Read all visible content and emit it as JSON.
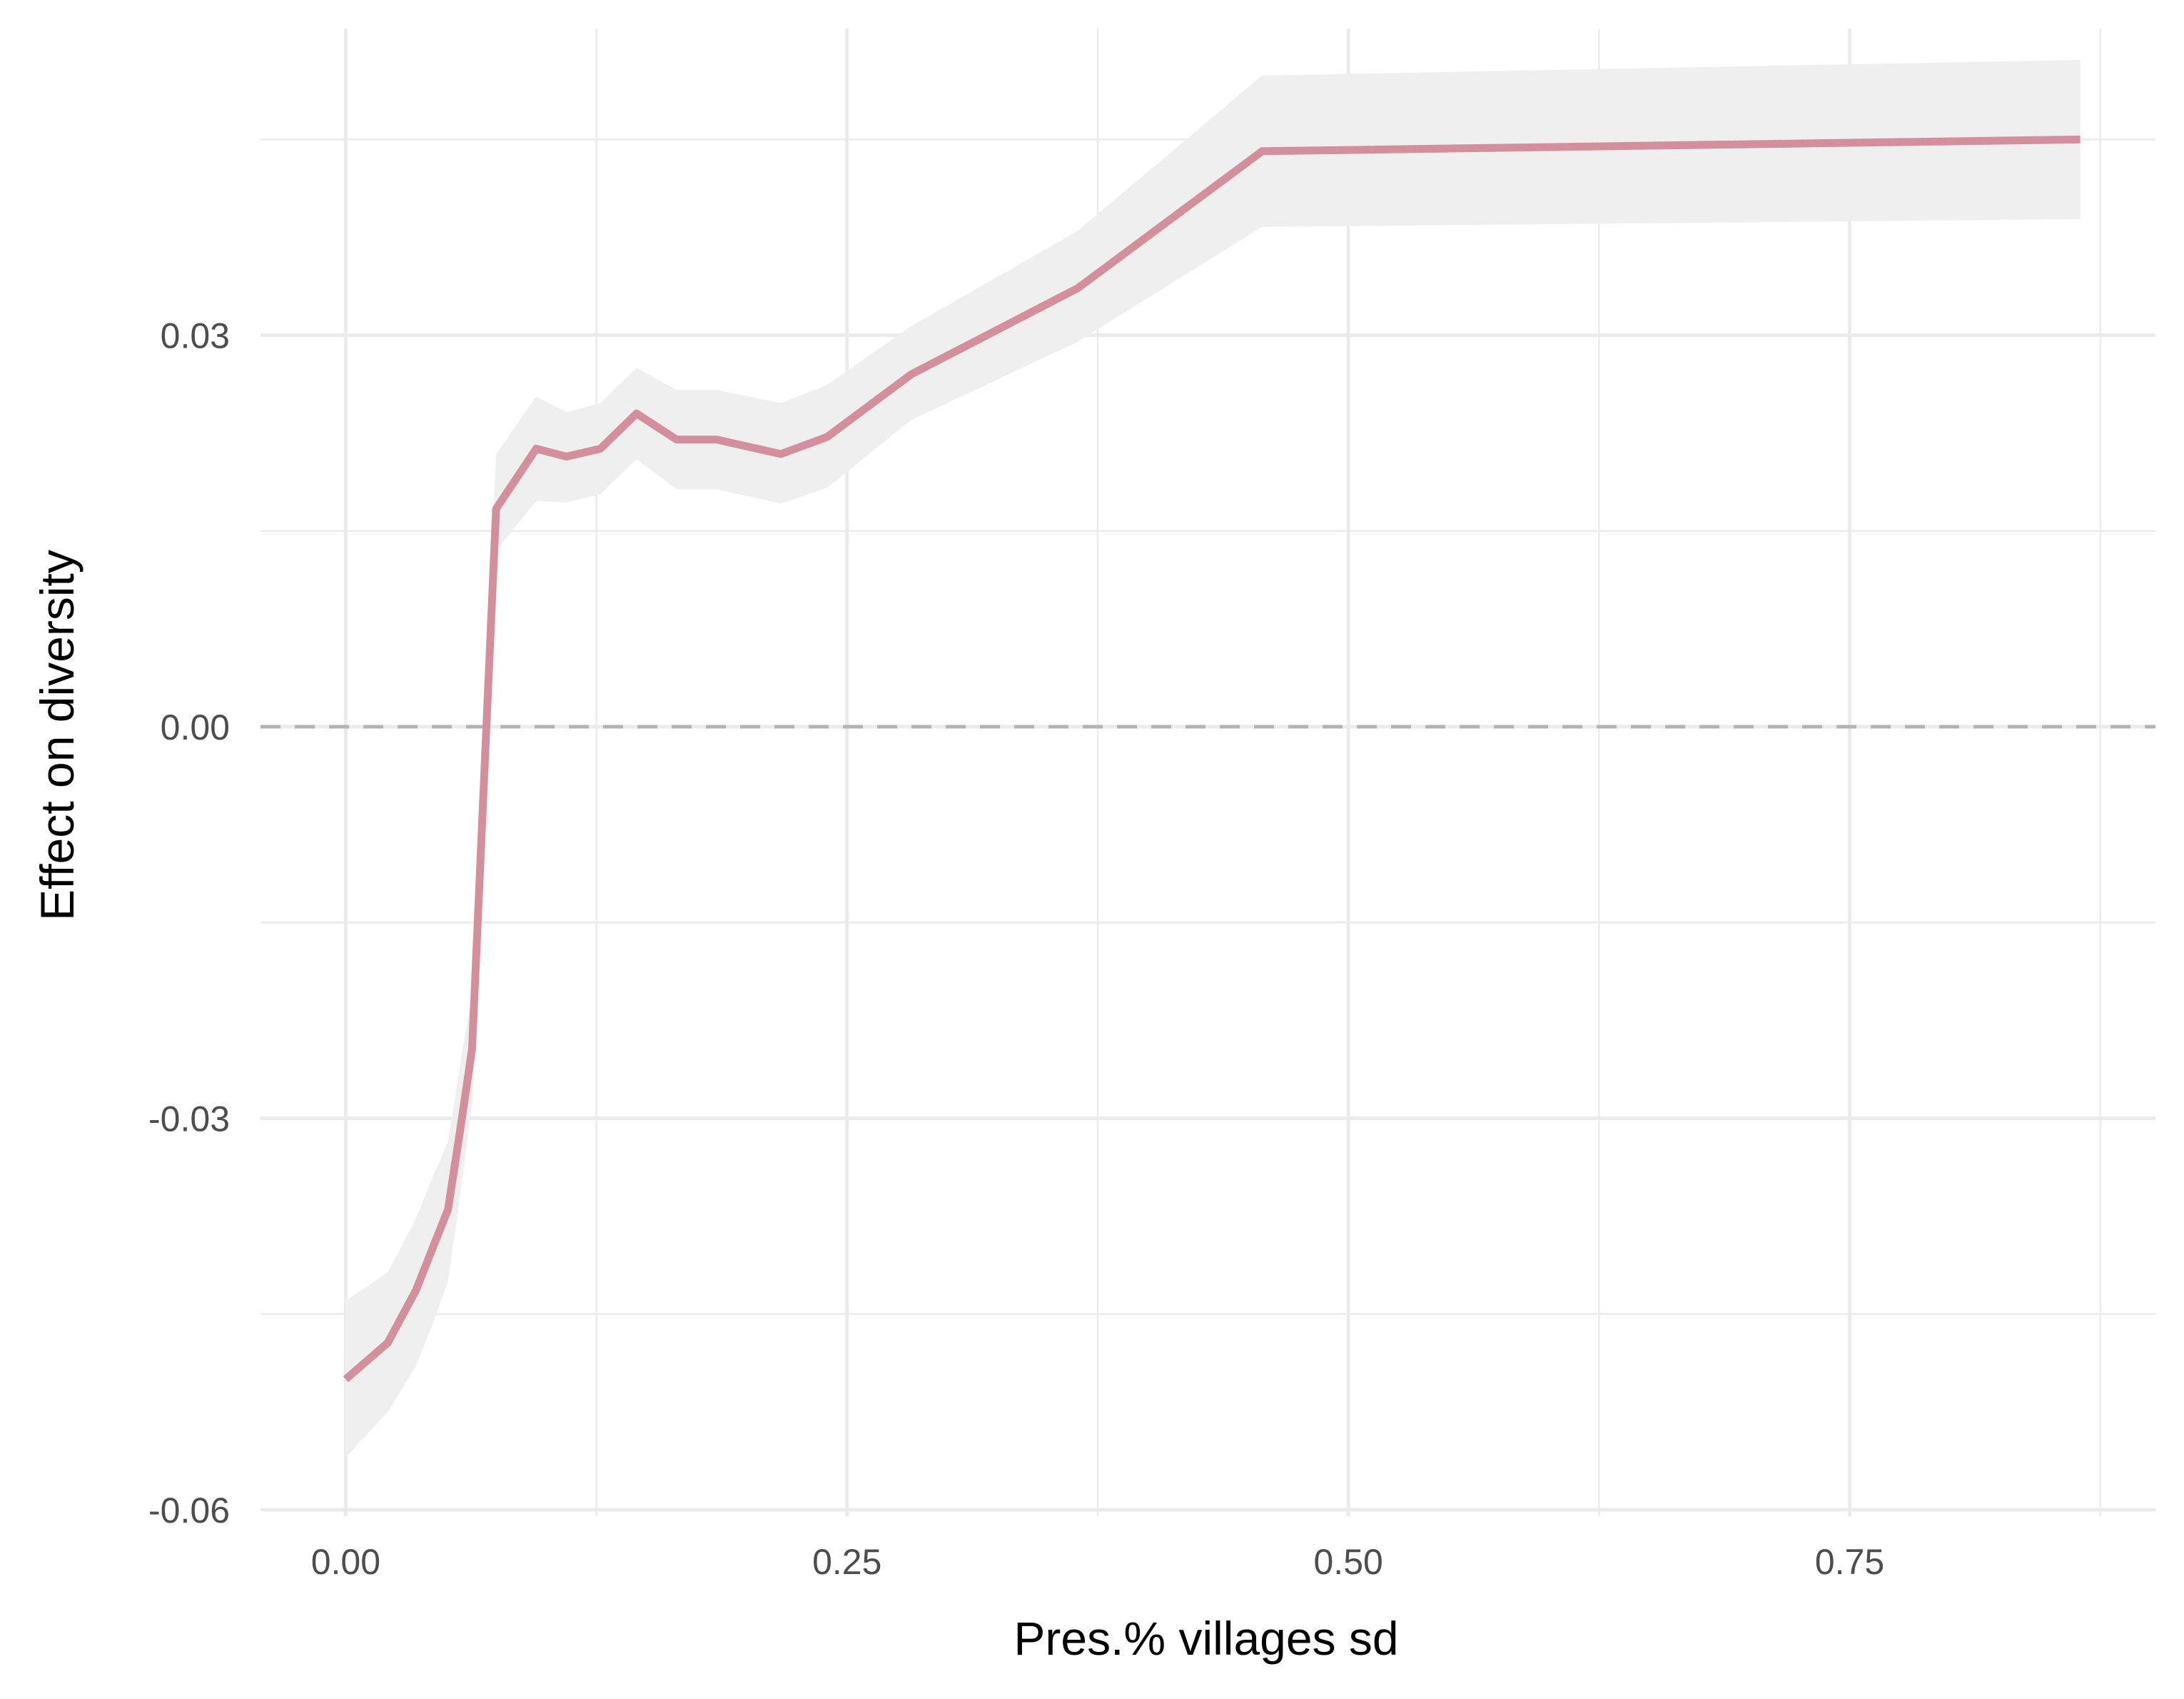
{
  "chart_data": {
    "type": "line",
    "title": "",
    "xlabel": "Pres.% villages sd",
    "ylabel": "Effect on diversity",
    "xlim": [
      -0.0425,
      0.9025
    ],
    "ylim": [
      -0.0605,
      0.0535
    ],
    "x_ticks": [
      0.0,
      0.25,
      0.5,
      0.75
    ],
    "x_tick_labels": [
      "0.00",
      "0.25",
      "0.50",
      "0.75"
    ],
    "y_ticks": [
      -0.06,
      -0.03,
      0.0,
      0.03
    ],
    "y_tick_labels": [
      "-0.06",
      "-0.03",
      "0.00",
      "0.03"
    ],
    "grid": true,
    "reference_line": {
      "y": 0,
      "style": "dashed",
      "color": "#b3b3b3"
    },
    "series": [
      {
        "line_color": "#d48f9c",
        "band_color": "#efefef",
        "x": [
          0.0,
          0.021,
          0.035,
          0.044,
          0.051,
          0.057,
          0.063,
          0.075,
          0.095,
          0.11,
          0.127,
          0.145,
          0.165,
          0.185,
          0.217,
          0.24,
          0.282,
          0.365,
          0.457,
          0.865
        ],
        "y": [
          -0.05,
          -0.0472,
          -0.0432,
          -0.0397,
          -0.037,
          -0.031,
          -0.0247,
          0.0167,
          0.0213,
          0.0207,
          0.0213,
          0.024,
          0.022,
          0.022,
          0.0209,
          0.0222,
          0.027,
          0.0336,
          0.0441,
          0.045
        ],
        "lower": [
          -0.056,
          -0.0525,
          -0.049,
          -0.0455,
          -0.0425,
          -0.036,
          -0.029,
          0.0135,
          0.0173,
          0.0172,
          0.0178,
          0.0205,
          0.0182,
          0.0182,
          0.0171,
          0.0183,
          0.0235,
          0.0295,
          0.0383,
          0.0389
        ],
        "upper": [
          -0.044,
          -0.0418,
          -0.0377,
          -0.0343,
          -0.0318,
          -0.026,
          -0.0204,
          0.0209,
          0.0253,
          0.0241,
          0.0248,
          0.0275,
          0.0258,
          0.0258,
          0.0248,
          0.0262,
          0.0307,
          0.038,
          0.0499,
          0.0511
        ]
      }
    ]
  }
}
